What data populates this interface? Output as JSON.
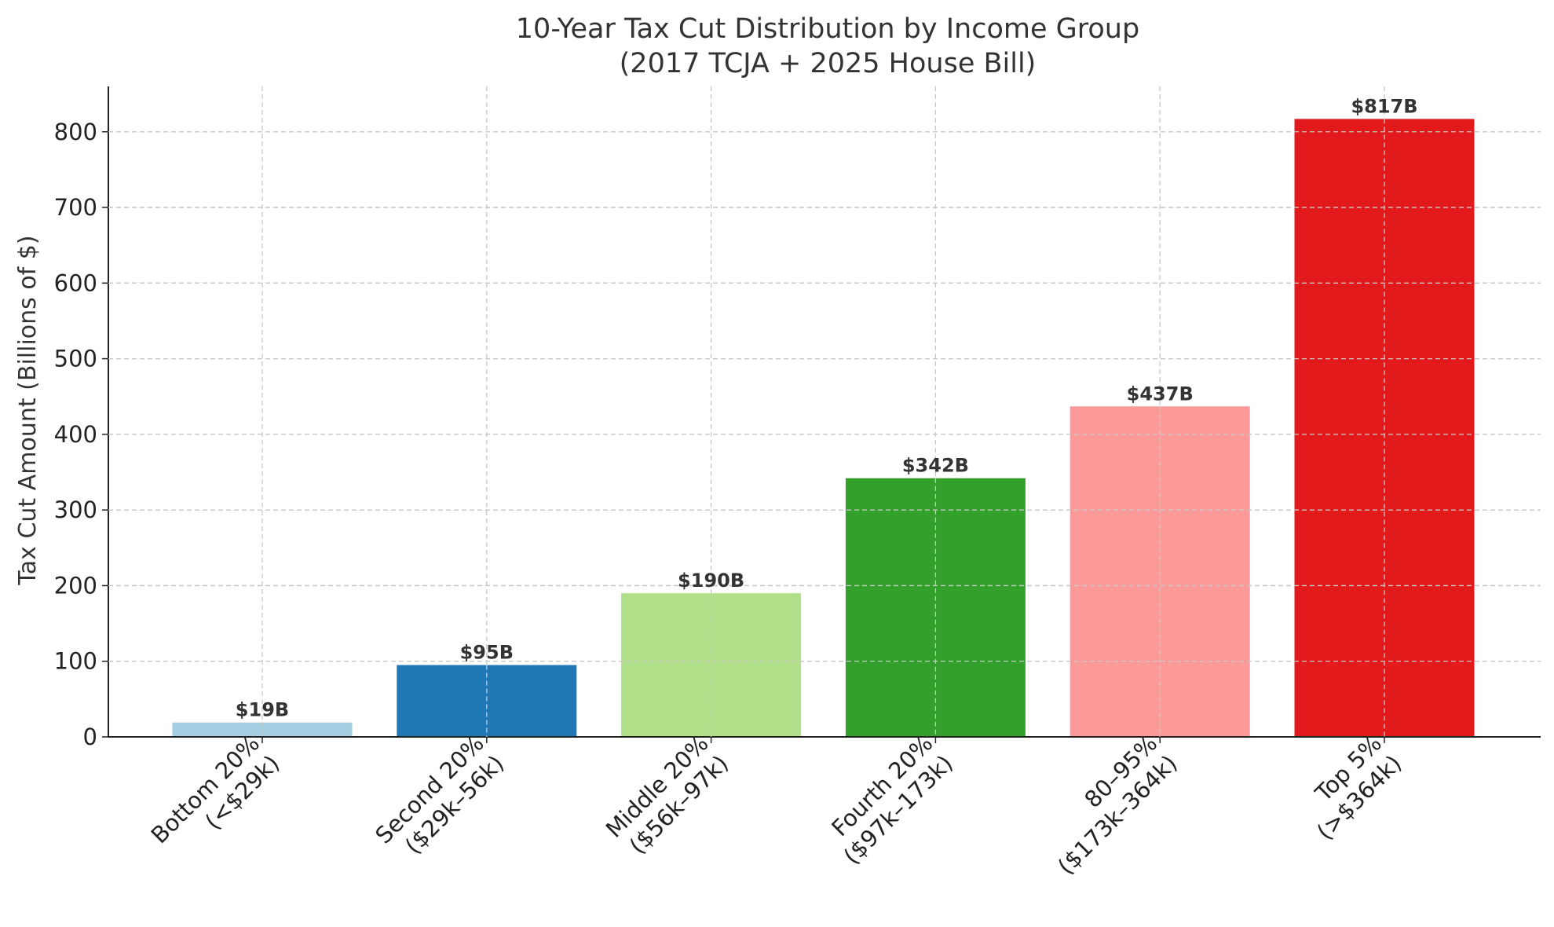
{
  "chart_data": {
    "type": "bar",
    "title": [
      "10-Year Tax Cut Distribution by Income Group",
      "(2017 TCJA + 2025 House Bill)"
    ],
    "xlabel": "",
    "ylabel": "Tax Cut Amount (Billions of $)",
    "ylim": [
      0,
      860
    ],
    "yticks": [
      0,
      100,
      200,
      300,
      400,
      500,
      600,
      700,
      800
    ],
    "grid": true,
    "categories": [
      [
        "Bottom 20%",
        "(<$29k)"
      ],
      [
        "Second 20%",
        "($29k–56k)"
      ],
      [
        "Middle 20%",
        "($56k–97k)"
      ],
      [
        "Fourth 20%",
        "($97k–173k)"
      ],
      [
        "80–95%",
        "($173k–364k)"
      ],
      [
        "Top 5%",
        "(>$364k)"
      ]
    ],
    "values": [
      19,
      95,
      190,
      342,
      437,
      817
    ],
    "data_labels": [
      "$19B",
      "$95B",
      "$190B",
      "$342B",
      "$437B",
      "$817B"
    ],
    "colors": [
      "#a6cee3",
      "#1f78b4",
      "#b2df8a",
      "#33a02c",
      "#fb9a99",
      "#e31a1c"
    ]
  }
}
